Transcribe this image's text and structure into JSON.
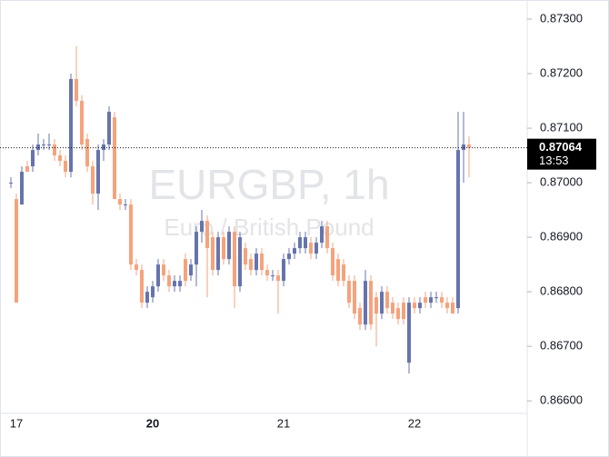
{
  "chart_data": {
    "type": "candlestick",
    "title": "EURGBP, 1h",
    "subtitle": "Euro / British Pound",
    "up_color": "#6674ad",
    "down_color": "#f5a37c",
    "categories": [
      null,
      "17",
      null,
      null,
      null,
      null,
      null,
      null,
      null,
      null,
      null,
      null,
      null,
      null,
      null,
      null,
      null,
      null,
      null,
      null,
      null,
      null,
      null,
      null,
      null,
      null,
      "20",
      null,
      null,
      null,
      null,
      null,
      null,
      null,
      null,
      null,
      null,
      null,
      null,
      null,
      null,
      null,
      null,
      null,
      null,
      null,
      null,
      null,
      null,
      null,
      "21",
      null,
      null,
      null,
      null,
      null,
      null,
      null,
      null,
      null,
      null,
      null,
      null,
      null,
      null,
      null,
      null,
      null,
      null,
      null,
      null,
      null,
      null,
      null,
      "22",
      null,
      null,
      null,
      null,
      null,
      null,
      null,
      null,
      null,
      null
    ],
    "open": [
      0.87,
      0.8697,
      0.8696,
      0.8703,
      0.8703,
      0.8706,
      0.8707,
      0.8707,
      0.8707,
      0.8705,
      0.8704,
      0.8702,
      0.8719,
      0.8715,
      0.8708,
      0.8703,
      0.8698,
      0.8706,
      0.8707,
      0.8712,
      0.8697,
      0.8696,
      0.8696,
      0.8685,
      0.8684,
      0.8678,
      0.8679,
      0.8681,
      0.8685,
      0.8683,
      0.8681,
      0.8681,
      0.8686,
      0.8683,
      0.8685,
      0.8691,
      0.8693,
      0.869,
      0.8684,
      0.869,
      0.8686,
      0.8691,
      0.8681,
      0.8688,
      0.8686,
      0.8684,
      0.8687,
      0.8684,
      0.8683,
      0.8683,
      0.8682,
      0.8686,
      0.8687,
      0.8688,
      0.8688,
      0.8689,
      0.8687,
      0.8689,
      0.8692,
      0.8688,
      0.8686,
      0.8685,
      0.8682,
      0.8682,
      0.8677,
      0.8674,
      0.8682,
      0.8679,
      0.8676,
      0.868,
      0.8678,
      0.8677,
      0.8678,
      0.8667,
      0.8678,
      0.8677,
      0.8679,
      0.8678,
      0.8679,
      0.8679,
      0.8678,
      0.8678,
      0.8677,
      0.8706,
      0.8707
    ],
    "high": [
      0.8701,
      0.8698,
      0.8703,
      0.8704,
      0.8707,
      0.8709,
      0.8708,
      0.8709,
      0.8708,
      0.8706,
      0.8705,
      0.872,
      0.8725,
      0.8716,
      0.8709,
      0.8704,
      0.8707,
      0.8708,
      0.8714,
      0.8713,
      0.8698,
      0.8697,
      0.8697,
      0.8686,
      0.8685,
      0.8681,
      0.8682,
      0.8686,
      0.8686,
      0.8684,
      0.8683,
      0.8683,
      0.8687,
      0.8686,
      0.8692,
      0.8695,
      0.8694,
      0.8691,
      0.8691,
      0.8691,
      0.8692,
      0.8692,
      0.8691,
      0.8689,
      0.8687,
      0.8688,
      0.8688,
      0.8685,
      0.8684,
      0.8684,
      0.8687,
      0.8688,
      0.8689,
      0.8691,
      0.8691,
      0.869,
      0.869,
      0.8693,
      0.8693,
      0.8689,
      0.8687,
      0.8686,
      0.8683,
      0.8683,
      0.8678,
      0.8684,
      0.8683,
      0.868,
      0.8681,
      0.8681,
      0.8679,
      0.8678,
      0.8679,
      0.8679,
      0.8679,
      0.8679,
      0.868,
      0.868,
      0.868,
      0.868,
      0.8679,
      0.8679,
      0.8713,
      0.8713,
      0.87085
    ],
    "low": [
      0.8699,
      0.8678,
      0.8696,
      0.8702,
      0.8702,
      0.8705,
      0.8706,
      0.8706,
      0.8704,
      0.8703,
      0.8701,
      0.8701,
      0.8714,
      0.8706,
      0.8702,
      0.8696,
      0.8695,
      0.8704,
      0.8706,
      0.8697,
      0.8695,
      0.8695,
      0.8684,
      0.8683,
      0.8677,
      0.8677,
      0.8678,
      0.868,
      0.8682,
      0.868,
      0.868,
      0.868,
      0.8681,
      0.8682,
      0.8681,
      0.8689,
      0.8679,
      0.8683,
      0.8683,
      0.8685,
      0.8685,
      0.8677,
      0.868,
      0.8684,
      0.8683,
      0.8683,
      0.8683,
      0.8682,
      0.8682,
      0.8676,
      0.8681,
      0.8685,
      0.8686,
      0.8687,
      0.8687,
      0.8686,
      0.8686,
      0.8688,
      0.8687,
      0.8682,
      0.8681,
      0.8681,
      0.8677,
      0.8675,
      0.8673,
      0.8673,
      0.8673,
      0.867,
      0.8675,
      0.8676,
      0.8675,
      0.8674,
      0.8674,
      0.8665,
      0.8676,
      0.8676,
      0.8677,
      0.8677,
      0.8678,
      0.8677,
      0.8676,
      0.8676,
      0.8676,
      0.87,
      0.8701
    ],
    "close": [
      0.87,
      0.8678,
      0.8702,
      0.8702,
      0.8706,
      0.8707,
      0.8707,
      0.8707,
      0.8705,
      0.8704,
      0.8702,
      0.8719,
      0.8715,
      0.8707,
      0.8703,
      0.8698,
      0.8706,
      0.8707,
      0.8713,
      0.8697,
      0.8696,
      0.8696,
      0.8685,
      0.8684,
      0.8678,
      0.868,
      0.8681,
      0.8685,
      0.8683,
      0.8681,
      0.8682,
      0.8682,
      0.8682,
      0.8685,
      0.8691,
      0.8693,
      0.8688,
      0.8684,
      0.869,
      0.8686,
      0.8691,
      0.8681,
      0.869,
      0.8685,
      0.8684,
      0.8687,
      0.8684,
      0.8683,
      0.8683,
      0.8682,
      0.8686,
      0.8687,
      0.8688,
      0.869,
      0.869,
      0.8687,
      0.8689,
      0.8692,
      0.8688,
      0.8683,
      0.8682,
      0.8682,
      0.8678,
      0.8676,
      0.8674,
      0.8682,
      0.8674,
      0.8676,
      0.868,
      0.8677,
      0.8676,
      0.8675,
      0.8675,
      0.8678,
      0.8677,
      0.8678,
      0.8678,
      0.8679,
      0.8679,
      0.8678,
      0.8677,
      0.8676,
      0.8706,
      0.8707,
      0.87064
    ],
    "ylim": [
      0.86577,
      0.87335
    ],
    "yticks": [
      {
        "value": 0.866,
        "label": "0.86600"
      },
      {
        "value": 0.867,
        "label": "0.86700"
      },
      {
        "value": 0.868,
        "label": "0.86800"
      },
      {
        "value": 0.869,
        "label": "0.86900"
      },
      {
        "value": 0.87,
        "label": "0.87000"
      },
      {
        "value": 0.871,
        "label": "0.87100"
      },
      {
        "value": 0.872,
        "label": "0.87200"
      },
      {
        "value": 0.873,
        "label": "0.87300"
      }
    ],
    "last_price": 0.87064,
    "countdown": "13:53"
  }
}
